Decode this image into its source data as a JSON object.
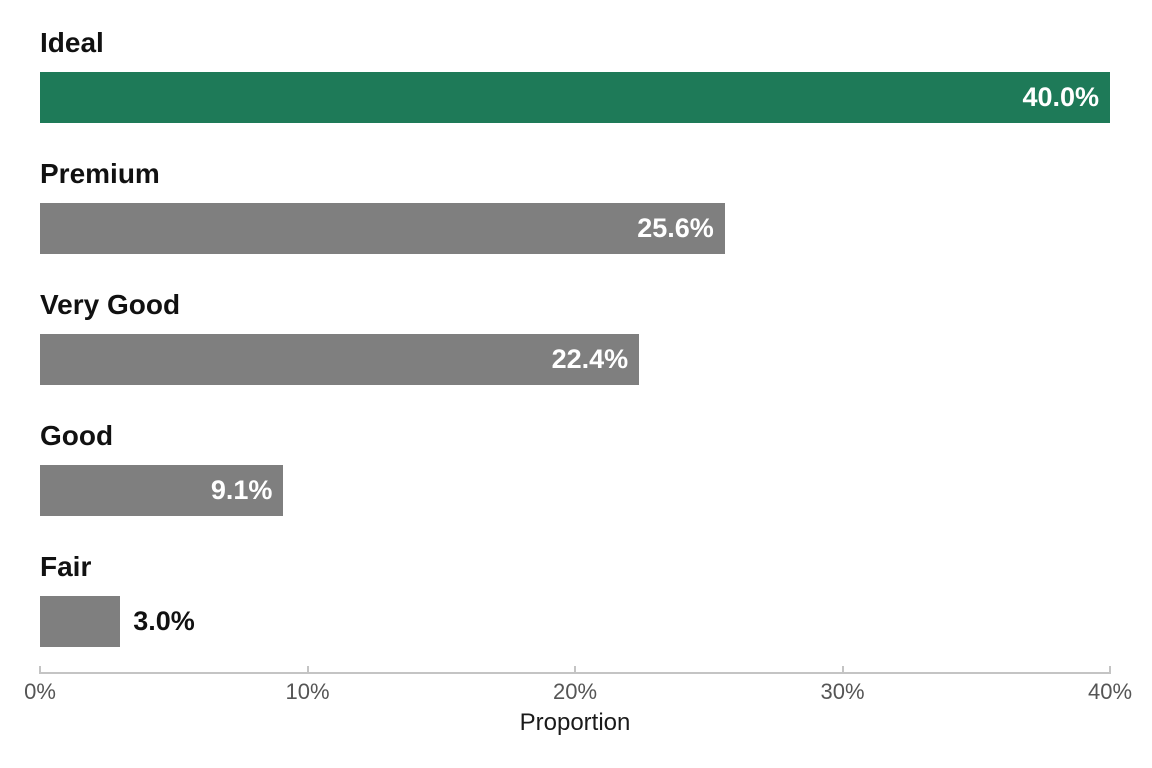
{
  "chart_data": {
    "type": "bar",
    "orientation": "horizontal",
    "categories": [
      "Ideal",
      "Premium",
      "Very Good",
      "Good",
      "Fair"
    ],
    "values": [
      40.0,
      25.6,
      22.4,
      9.1,
      3.0
    ],
    "value_labels": [
      "40.0%",
      "25.6%",
      "22.4%",
      "9.1%",
      "3.0%"
    ],
    "bar_colors": [
      "#1e7a58",
      "#7f7f7f",
      "#7f7f7f",
      "#7f7f7f",
      "#7f7f7f"
    ],
    "highlight": {
      "category": "Ideal",
      "color": "#1e7a58"
    },
    "xlabel": "Proportion",
    "xlim": [
      0,
      40
    ],
    "x_ticks": [
      0,
      10,
      20,
      30,
      40
    ],
    "x_tick_labels": [
      "0%",
      "10%",
      "20%",
      "30%",
      "40%"
    ],
    "grid": false,
    "legend": "none"
  },
  "colors": {
    "highlight_green": "#1e7a58",
    "bar_gray": "#7f7f7f",
    "axis_line": "#c4c4c4",
    "tick_text": "#555555",
    "category_text": "#111111",
    "value_text_inside": "#ffffff",
    "value_text_outside": "#111111",
    "background": "#ffffff"
  }
}
